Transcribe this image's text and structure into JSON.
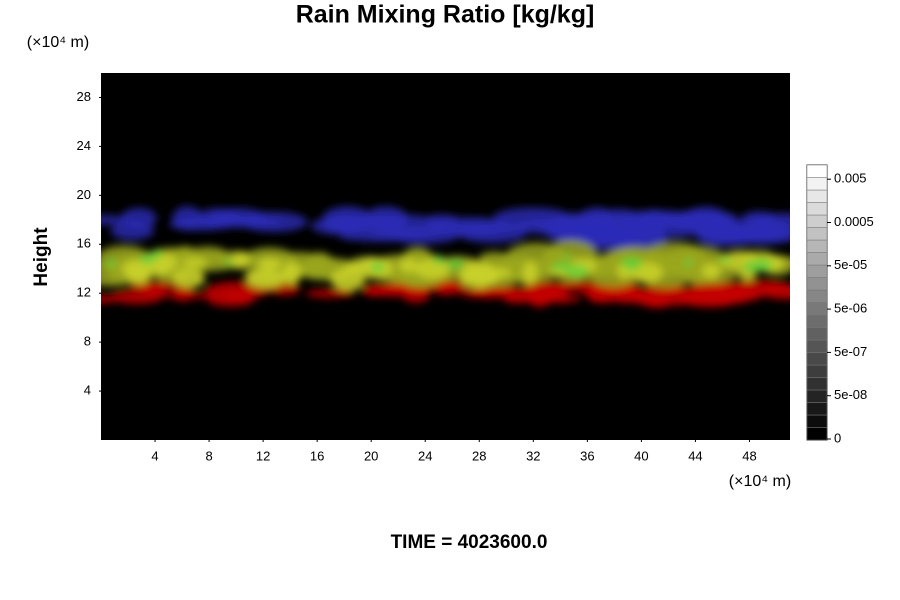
{
  "chart_data": {
    "type": "image",
    "title": "Rain Mixing Ratio [kg/kg]",
    "ylabel": "Height",
    "yunit": "(×10⁴ m)",
    "xunit": "(×10⁴ m)",
    "xlim": [
      0,
      51
    ],
    "xticks": [
      4,
      8,
      12,
      16,
      20,
      24,
      28,
      32,
      36,
      40,
      44,
      48
    ],
    "ylim": [
      0,
      30
    ],
    "yticks": [
      4,
      8,
      12,
      16,
      20,
      24,
      28
    ],
    "colorbar_ticks": [
      {
        "value": 0,
        "label": "0"
      },
      {
        "value": 5e-08,
        "label": "5e-08"
      },
      {
        "value": 5e-07,
        "label": "5e-07"
      },
      {
        "value": 5e-06,
        "label": "5e-06"
      },
      {
        "value": 5e-05,
        "label": "5e-05"
      },
      {
        "value": 0.0005,
        "label": "0.0005"
      },
      {
        "value": 0.005,
        "label": "0.005"
      }
    ],
    "annotation": "TIME = 4023600.0"
  }
}
